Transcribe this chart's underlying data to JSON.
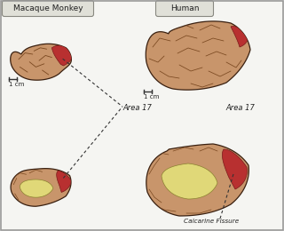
{
  "bg_color": "#f5f5f2",
  "border_color": "#999999",
  "label_monkey": "Macaque Monkey",
  "label_human": "Human",
  "label_area17_1": "Area 17",
  "label_area17_2": "Area 17",
  "label_calcarine": "Calcarine Fissure",
  "label_1cm": "1 cm",
  "brain_fill": "#c8956b",
  "brain_dark": "#8b5a2b",
  "brain_edge": "#3a2010",
  "brain_light": "#dba87a",
  "red_fill": "#b83030",
  "red_dark": "#7a1a1a",
  "yellow_fill": "#e0d878",
  "yellow_edge": "#8a8030",
  "sulci_color": "#7a4820",
  "dashed_color": "#333333",
  "box_face": "#e0e0d8",
  "box_edge": "#888880",
  "text_color": "#222222",
  "scale_color": "#333333"
}
